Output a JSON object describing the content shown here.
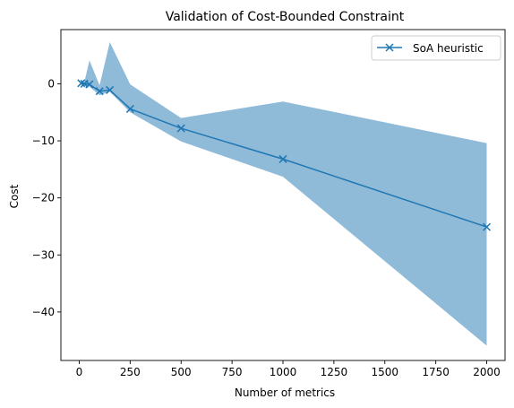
{
  "chart_data": {
    "type": "line",
    "title": "Validation of Cost-Bounded Constraint",
    "xlabel": "Number of metrics",
    "ylabel": "Cost",
    "xlim": [
      -90,
      2090
    ],
    "ylim": [
      -48.5,
      9.5
    ],
    "xticks": [
      0,
      250,
      500,
      750,
      1000,
      1250,
      1500,
      1750,
      2000
    ],
    "xtick_labels": [
      "0",
      "250",
      "500",
      "750",
      "1000",
      "1250",
      "1500",
      "1750",
      "2000"
    ],
    "yticks": [
      0,
      -10,
      -20,
      -30,
      -40
    ],
    "ytick_labels": [
      "0",
      "−10",
      "−20",
      "−30",
      "−40"
    ],
    "grid": false,
    "legend_position": "top-right",
    "series": [
      {
        "name": "SoA heuristic",
        "color": "#1f77b4",
        "marker": "x",
        "x": [
          10,
          25,
          50,
          100,
          150,
          250,
          500,
          1000,
          2000
        ],
        "y": [
          0.1,
          0.0,
          -0.1,
          -1.3,
          -1.1,
          -4.4,
          -7.8,
          -13.2,
          -25.1
        ],
        "band_upper": [
          0.4,
          0.3,
          4.1,
          -0.3,
          7.3,
          -0.1,
          -6.0,
          -3.1,
          -10.4
        ],
        "band_lower": [
          -0.2,
          -0.3,
          -0.5,
          -2.0,
          -1.4,
          -5.0,
          -10.1,
          -16.3,
          -45.9
        ]
      }
    ]
  }
}
